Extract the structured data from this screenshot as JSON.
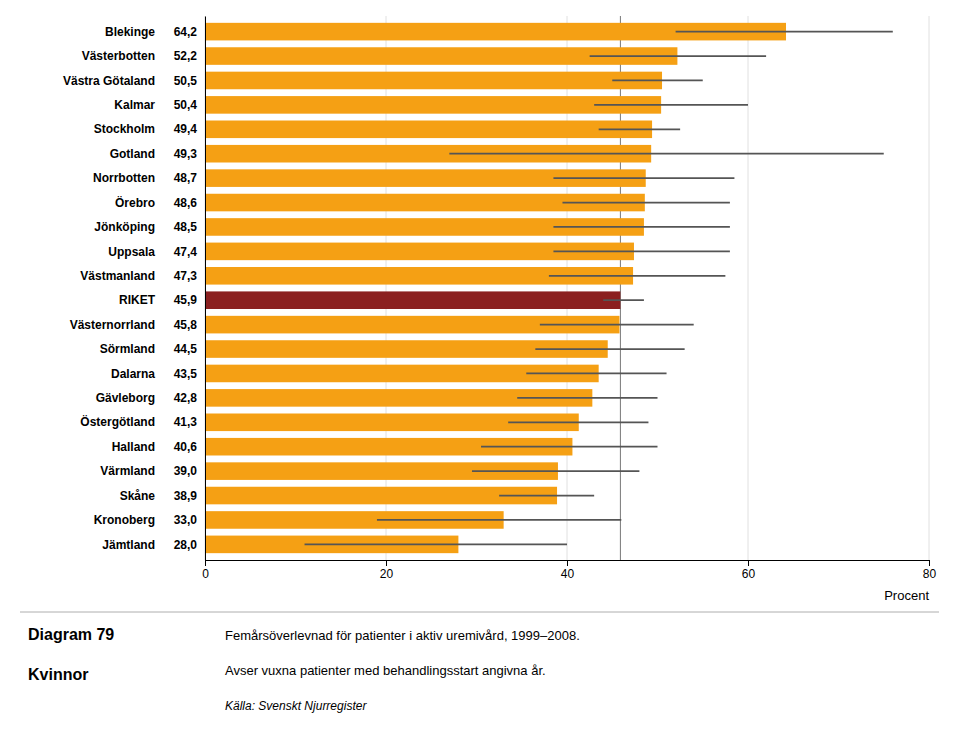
{
  "chart_data": {
    "type": "bar",
    "orientation": "horizontal",
    "title": "Diagram 79",
    "subtitle": "Kvinnor",
    "annotations": [
      "Femårsöverlevnad för patienter i aktiv uremivård, 1999–2008.",
      "Avser vuxna patienter med behandlingsstart angivna år.",
      "Källa: Svenskt Njurregister"
    ],
    "xlabel": "Procent",
    "categories": [
      "Blekinge",
      "Västerbotten",
      "Västra Götaland",
      "Kalmar",
      "Stockholm",
      "Gotland",
      "Norrbotten",
      "Örebro",
      "Jönköping",
      "Uppsala",
      "Västmanland",
      "RIKET",
      "Västernorrland",
      "Sörmland",
      "Dalarna",
      "Gävleborg",
      "Östergötland",
      "Halland",
      "Värmland",
      "Skåne",
      "Kronoberg",
      "Jämtland"
    ],
    "values": [
      64.2,
      52.2,
      50.5,
      50.4,
      49.4,
      49.3,
      48.7,
      48.6,
      48.5,
      47.4,
      47.3,
      45.9,
      45.8,
      44.5,
      43.5,
      42.8,
      41.3,
      40.6,
      39.0,
      38.9,
      33.0,
      28.0
    ],
    "value_labels": [
      "64,2",
      "52,2",
      "50,5",
      "50,4",
      "49,4",
      "49,3",
      "48,7",
      "48,6",
      "48,5",
      "47,4",
      "47,3",
      "45,9",
      "45,8",
      "44,5",
      "43,5",
      "42,8",
      "41,3",
      "40,6",
      "39,0",
      "38,9",
      "33,0",
      "28,0"
    ],
    "ci_low": [
      52.0,
      42.5,
      45.0,
      43.0,
      43.5,
      27.0,
      38.5,
      39.5,
      38.5,
      38.5,
      38.0,
      44.0,
      37.0,
      36.5,
      35.5,
      34.5,
      33.5,
      30.5,
      29.5,
      32.5,
      19.0,
      11.0
    ],
    "ci_high": [
      76.0,
      62.0,
      55.0,
      60.0,
      52.5,
      75.0,
      58.5,
      58.0,
      58.0,
      58.0,
      57.5,
      48.5,
      54.0,
      53.0,
      51.0,
      50.0,
      49.0,
      50.0,
      48.0,
      43.0,
      46.0,
      40.0
    ],
    "colors": [
      "#F5A014",
      "#F5A014",
      "#F5A014",
      "#F5A014",
      "#F5A014",
      "#F5A014",
      "#F5A014",
      "#F5A014",
      "#F5A014",
      "#F5A014",
      "#F5A014",
      "#8B2020",
      "#F5A014",
      "#F5A014",
      "#F5A014",
      "#F5A014",
      "#F5A014",
      "#F5A014",
      "#F5A014",
      "#F5A014",
      "#F5A014",
      "#F5A014"
    ],
    "reference_value": 45.9,
    "xlim": [
      0,
      80
    ],
    "xticks": [
      0,
      20,
      40,
      60,
      80
    ],
    "grid": true,
    "data_labels": true
  }
}
